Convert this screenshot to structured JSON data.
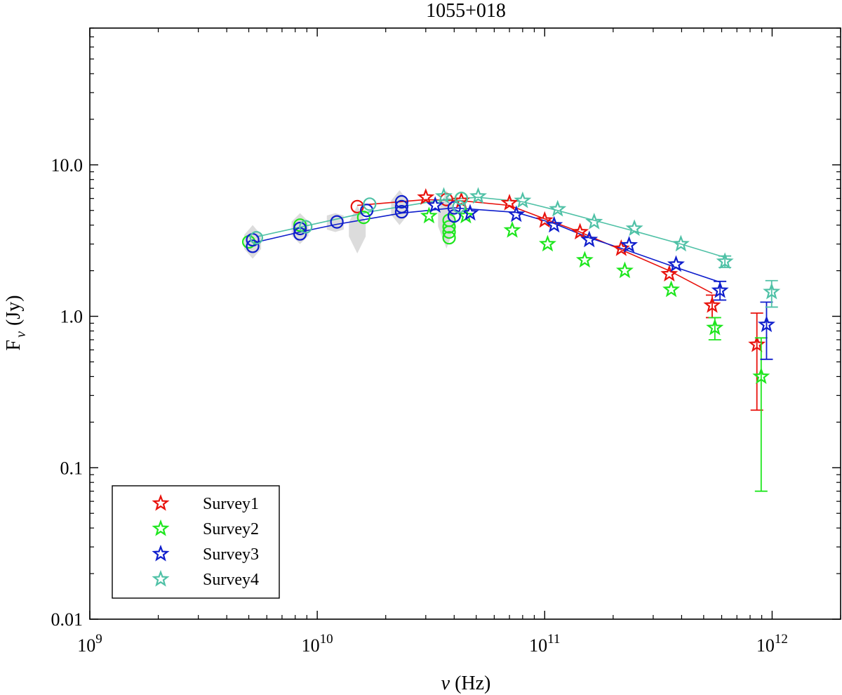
{
  "chart_data": {
    "type": "scatter",
    "title": "1055+018",
    "xlabel": "ν (Hz)",
    "ylabel_main": "F",
    "ylabel_sub": "ν",
    "ylabel_unit": "(Jy)",
    "xscale": "log",
    "yscale": "log",
    "xlim": [
      1000000000.0,
      2000000000000.0
    ],
    "ylim": [
      0.01,
      80
    ],
    "x_ticks": [
      {
        "value": 1000000000.0,
        "base": "10",
        "exp": "9"
      },
      {
        "value": 10000000000.0,
        "base": "10",
        "exp": "10"
      },
      {
        "value": 100000000000.0,
        "base": "10",
        "exp": "11"
      },
      {
        "value": 1000000000000.0,
        "base": "10",
        "exp": "12"
      }
    ],
    "y_ticks": [
      {
        "value": 0.01,
        "label": "0.01"
      },
      {
        "value": 0.1,
        "label": "0.1"
      },
      {
        "value": 1,
        "label": "1.0"
      },
      {
        "value": 10,
        "label": "10.0"
      }
    ],
    "legend_position": "bottom-left",
    "grey_bands": [
      {
        "x": 5200000000.0,
        "ymin": 2.4,
        "ymax": 4.0
      },
      {
        "x": 8400000000.0,
        "ymin": 3.0,
        "ymax": 4.8
      },
      {
        "x": 12000000000.0,
        "ymin": 3.6,
        "ymax": 4.8
      },
      {
        "x": 15000000000.0,
        "ymin": 2.6,
        "ymax": 5.4
      },
      {
        "x": 23000000000.0,
        "ymin": 4.0,
        "ymax": 6.8
      },
      {
        "x": 37000000000.0,
        "ymin": 2.8,
        "ymax": 6.8
      }
    ],
    "series": [
      {
        "name": "Survey1",
        "color": "#e8120c",
        "stars": [
          {
            "x": 30000000000.0,
            "y": 6.1
          },
          {
            "x": 43000000000.0,
            "y": 5.8
          },
          {
            "x": 70000000000.0,
            "y": 5.6
          },
          {
            "x": 100000000000.0,
            "y": 4.3
          },
          {
            "x": 143000000000.0,
            "y": 3.6
          },
          {
            "x": 217000000000.0,
            "y": 2.8
          },
          {
            "x": 353000000000.0,
            "y": 1.9
          },
          {
            "x": 545000000000.0,
            "y": 1.18,
            "err": [
              0.98,
              1.38
            ]
          },
          {
            "x": 857000000000.0,
            "y": 0.65,
            "err": [
              0.24,
              1.05
            ]
          }
        ],
        "circles": [
          {
            "x": 15000000000.0,
            "y": 5.3
          },
          {
            "x": 37000000000.0,
            "y": 5.9
          }
        ],
        "fit": [
          {
            "x": 15000000000.0,
            "y": 5.4
          },
          {
            "x": 30000000000.0,
            "y": 5.9
          },
          {
            "x": 43000000000.0,
            "y": 5.8
          },
          {
            "x": 70000000000.0,
            "y": 5.4
          },
          {
            "x": 100000000000.0,
            "y": 4.4
          },
          {
            "x": 143000000000.0,
            "y": 3.6
          },
          {
            "x": 217000000000.0,
            "y": 2.75
          },
          {
            "x": 353000000000.0,
            "y": 2.0
          },
          {
            "x": 545000000000.0,
            "y": 1.42
          }
        ]
      },
      {
        "name": "Survey2",
        "color": "#1ee61e",
        "stars": [
          {
            "x": 31000000000.0,
            "y": 4.6
          },
          {
            "x": 45000000000.0,
            "y": 4.6
          },
          {
            "x": 72000000000.0,
            "y": 3.7
          },
          {
            "x": 103000000000.0,
            "y": 3.0
          },
          {
            "x": 150000000000.0,
            "y": 2.35
          },
          {
            "x": 225000000000.0,
            "y": 2.0
          },
          {
            "x": 360000000000.0,
            "y": 1.5
          },
          {
            "x": 560000000000.0,
            "y": 0.84,
            "err": [
              0.7,
              0.98
            ]
          },
          {
            "x": 895000000000.0,
            "y": 0.4,
            "err": [
              0.07,
              0.72
            ]
          }
        ],
        "circles": [
          {
            "x": 5000000000.0,
            "y": 3.1
          },
          {
            "x": 8400000000.0,
            "y": 4.0
          },
          {
            "x": 16000000000.0,
            "y": 4.5
          },
          {
            "x": 38000000000.0,
            "y": 3.3
          },
          {
            "x": 38000000000.0,
            "y": 3.6
          },
          {
            "x": 38000000000.0,
            "y": 3.9
          },
          {
            "x": 38000000000.0,
            "y": 4.3
          },
          {
            "x": 43000000000.0,
            "y": 6.0
          }
        ],
        "fit": []
      },
      {
        "name": "Survey3",
        "color": "#0f1ecc",
        "stars": [
          {
            "x": 33000000000.0,
            "y": 5.4
          },
          {
            "x": 47000000000.0,
            "y": 4.8
          },
          {
            "x": 75000000000.0,
            "y": 4.7
          },
          {
            "x": 110000000000.0,
            "y": 4.0
          },
          {
            "x": 157000000000.0,
            "y": 3.2
          },
          {
            "x": 235000000000.0,
            "y": 2.95
          },
          {
            "x": 378000000000.0,
            "y": 2.2
          },
          {
            "x": 590000000000.0,
            "y": 1.48,
            "err": [
              1.28,
              1.7
            ]
          },
          {
            "x": 945000000000.0,
            "y": 0.88,
            "err": [
              0.52,
              1.24
            ]
          }
        ],
        "circles": [
          {
            "x": 5200000000.0,
            "y": 2.9
          },
          {
            "x": 5200000000.0,
            "y": 3.2
          },
          {
            "x": 8400000000.0,
            "y": 3.5
          },
          {
            "x": 8400000000.0,
            "y": 3.8
          },
          {
            "x": 12200000000.0,
            "y": 4.2
          },
          {
            "x": 16500000000.0,
            "y": 5.0
          },
          {
            "x": 23500000000.0,
            "y": 4.9
          },
          {
            "x": 23500000000.0,
            "y": 5.3
          },
          {
            "x": 23500000000.0,
            "y": 5.7
          },
          {
            "x": 40000000000.0,
            "y": 4.6
          },
          {
            "x": 40000000000.0,
            "y": 5.2
          }
        ],
        "fit": [
          {
            "x": 5200000000.0,
            "y": 3.05
          },
          {
            "x": 8400000000.0,
            "y": 3.6
          },
          {
            "x": 12200000000.0,
            "y": 4.05
          },
          {
            "x": 23500000000.0,
            "y": 4.8
          },
          {
            "x": 40000000000.0,
            "y": 5.2
          },
          {
            "x": 75000000000.0,
            "y": 4.85
          },
          {
            "x": 110000000000.0,
            "y": 4.1
          },
          {
            "x": 157000000000.0,
            "y": 3.3
          },
          {
            "x": 235000000000.0,
            "y": 2.7
          },
          {
            "x": 378000000000.0,
            "y": 2.1
          },
          {
            "x": 590000000000.0,
            "y": 1.68
          }
        ]
      },
      {
        "name": "Survey4",
        "color": "#4fc1a6",
        "stars": [
          {
            "x": 36000000000.0,
            "y": 6.2
          },
          {
            "x": 51000000000.0,
            "y": 6.2
          },
          {
            "x": 80000000000.0,
            "y": 5.8
          },
          {
            "x": 114000000000.0,
            "y": 5.1
          },
          {
            "x": 165000000000.0,
            "y": 4.2
          },
          {
            "x": 248000000000.0,
            "y": 3.8
          },
          {
            "x": 397000000000.0,
            "y": 3.0
          },
          {
            "x": 620000000000.0,
            "y": 2.3,
            "err": [
              2.1,
              2.5
            ]
          },
          {
            "x": 995000000000.0,
            "y": 1.45,
            "err": [
              1.15,
              1.72
            ]
          }
        ],
        "circles": [
          {
            "x": 5400000000.0,
            "y": 3.3
          },
          {
            "x": 8900000000.0,
            "y": 3.9
          },
          {
            "x": 17000000000.0,
            "y": 5.5
          },
          {
            "x": 42000000000.0,
            "y": 5.3
          },
          {
            "x": 43000000000.0,
            "y": 6.0
          }
        ],
        "fit": [
          {
            "x": 5400000000.0,
            "y": 3.35
          },
          {
            "x": 8900000000.0,
            "y": 3.95
          },
          {
            "x": 17000000000.0,
            "y": 4.9
          },
          {
            "x": 36000000000.0,
            "y": 5.9
          },
          {
            "x": 51000000000.0,
            "y": 6.1
          },
          {
            "x": 80000000000.0,
            "y": 5.7
          },
          {
            "x": 114000000000.0,
            "y": 5.0
          },
          {
            "x": 165000000000.0,
            "y": 4.3
          },
          {
            "x": 248000000000.0,
            "y": 3.65
          },
          {
            "x": 397000000000.0,
            "y": 3.0
          },
          {
            "x": 620000000000.0,
            "y": 2.45
          }
        ]
      }
    ]
  }
}
